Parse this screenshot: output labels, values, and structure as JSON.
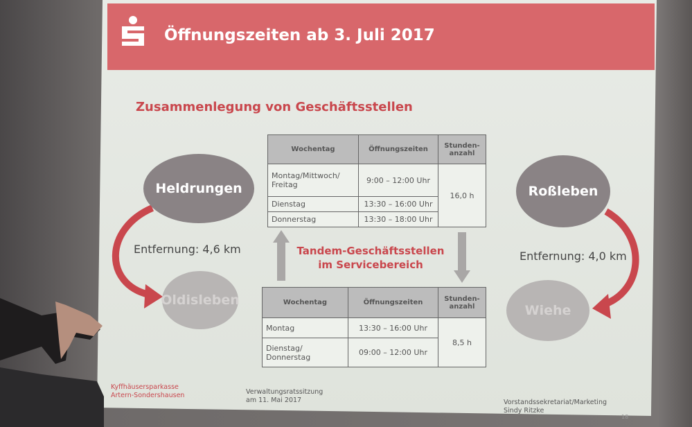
{
  "header": {
    "title": "Öffnungszeiten ab 3. Juli 2017",
    "brand_color": "#d8676b"
  },
  "subtitle": "Zusammenlegung von Geschäftsstellen",
  "locations": {
    "left_main": "Heldrungen",
    "left_secondary": "Oldisleben",
    "right_main": "Roßleben",
    "right_secondary": "Wiehe"
  },
  "distances": {
    "left": "Entfernung: 4,6 km",
    "right": "Entfernung: 4,0 km"
  },
  "tandem": [
    "Tandem-Geschäftsstellen",
    "im Servicebereich"
  ],
  "table_top": {
    "headers": [
      "Wochentag",
      "Öffnungszeiten",
      "Stunden-anzahl"
    ],
    "rows": [
      [
        "Montag/Mittwoch/ Freitag",
        "9:00 – 12:00 Uhr"
      ],
      [
        "Dienstag",
        "13:30 – 16:00 Uhr"
      ],
      [
        "Donnerstag",
        "13:30 – 18:00 Uhr"
      ]
    ],
    "hours": "16,0 h"
  },
  "table_bottom": {
    "headers": [
      "Wochentag",
      "Öffnungszeiten",
      "Stunden-anzahl"
    ],
    "rows": [
      [
        "Montag",
        "13:30 – 16:00 Uhr"
      ],
      [
        "Dienstag/ Donnerstag",
        "09:00 – 12:00 Uhr"
      ]
    ],
    "hours": "8,5 h"
  },
  "footer": {
    "org_line1": "Kyffhäusersparkasse",
    "org_line2": "Artern-Sondershausen",
    "meeting_line1": "Verwaltungsratssitzung",
    "meeting_line2": "am 11. Mai 2017",
    "dept_line1": "Vorstandssekretariat/Marketing",
    "dept_line2": "Sindy Ritzke",
    "page": "18"
  }
}
